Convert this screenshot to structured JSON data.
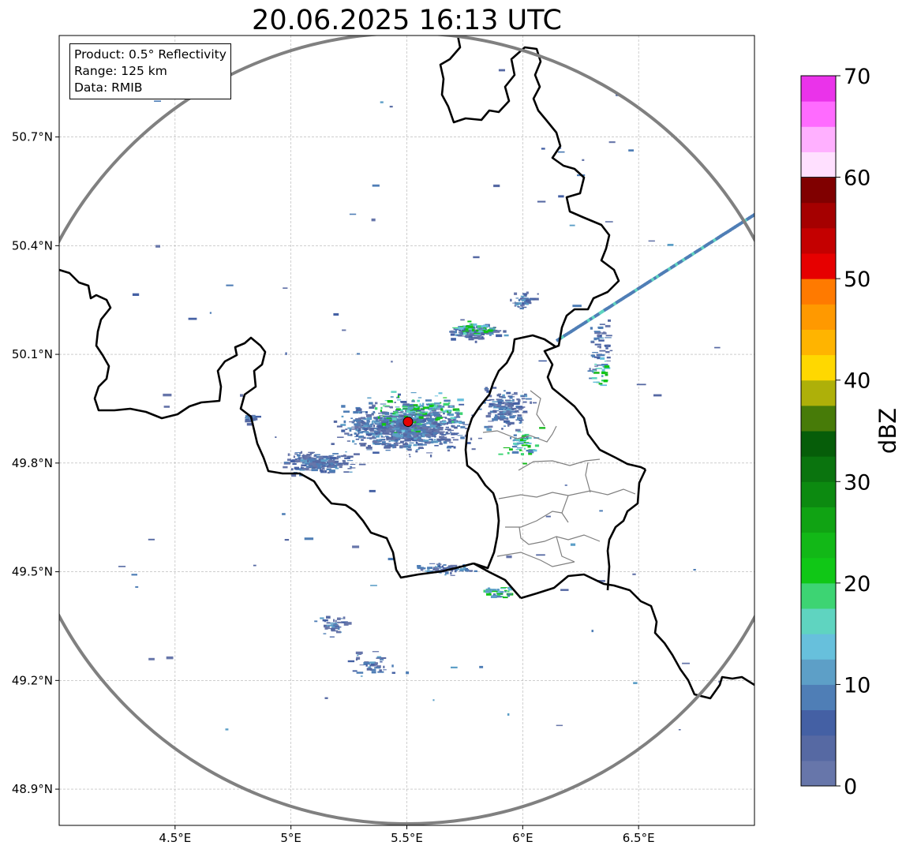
{
  "title": "20.06.2025 16:13 UTC",
  "info_box": {
    "product": "Product: 0.5° Reflectivity",
    "range": "Range: 125 km",
    "data": "Data: RMIB"
  },
  "map": {
    "lon_range": [
      4.0,
      7.0
    ],
    "lat_range": [
      48.8,
      50.98
    ],
    "lon_ticks": [
      {
        "value": 4.5,
        "label": "4.5°E"
      },
      {
        "value": 5.0,
        "label": "5°E"
      },
      {
        "value": 5.5,
        "label": "5.5°E"
      },
      {
        "value": 6.0,
        "label": "6°E"
      },
      {
        "value": 6.5,
        "label": "6.5°E"
      }
    ],
    "lat_ticks": [
      {
        "value": 50.7,
        "label": "50.7°N"
      },
      {
        "value": 50.4,
        "label": "50.4°N"
      },
      {
        "value": 50.1,
        "label": "50.1°N"
      },
      {
        "value": 49.8,
        "label": "49.8°N"
      },
      {
        "value": 49.5,
        "label": "49.5°N"
      },
      {
        "value": 49.2,
        "label": "49.2°N"
      },
      {
        "value": 48.9,
        "label": "48.9°N"
      }
    ],
    "grid": true,
    "radar_site": {
      "lon": 5.505,
      "lat": 49.914
    },
    "range_ring_km": 125
  },
  "colorbar": {
    "label": "dBZ",
    "min": 0,
    "max": 70,
    "tick_values": [
      0,
      10,
      20,
      30,
      40,
      50,
      60,
      70
    ],
    "tick_labels": [
      "0",
      "10",
      "20",
      "30",
      "40",
      "50",
      "60",
      "70"
    ],
    "colors": [
      "#6776aa",
      "#5669a3",
      "#4460a4",
      "#4f7eb6",
      "#5d9fc7",
      "#67c0dc",
      "#5fd4c0",
      "#3dd473",
      "#10c716",
      "#12b817",
      "#10a313",
      "#0c8a10",
      "#0a740e",
      "#065d09",
      "#477b08",
      "#aeb009",
      "#ffd800",
      "#ffb400",
      "#ff9900",
      "#ff7a00",
      "#e60000",
      "#c40000",
      "#a50000",
      "#800000",
      "#ffe0ff",
      "#ffb0ff",
      "#ff6bff",
      "#ea33ea"
    ]
  }
}
